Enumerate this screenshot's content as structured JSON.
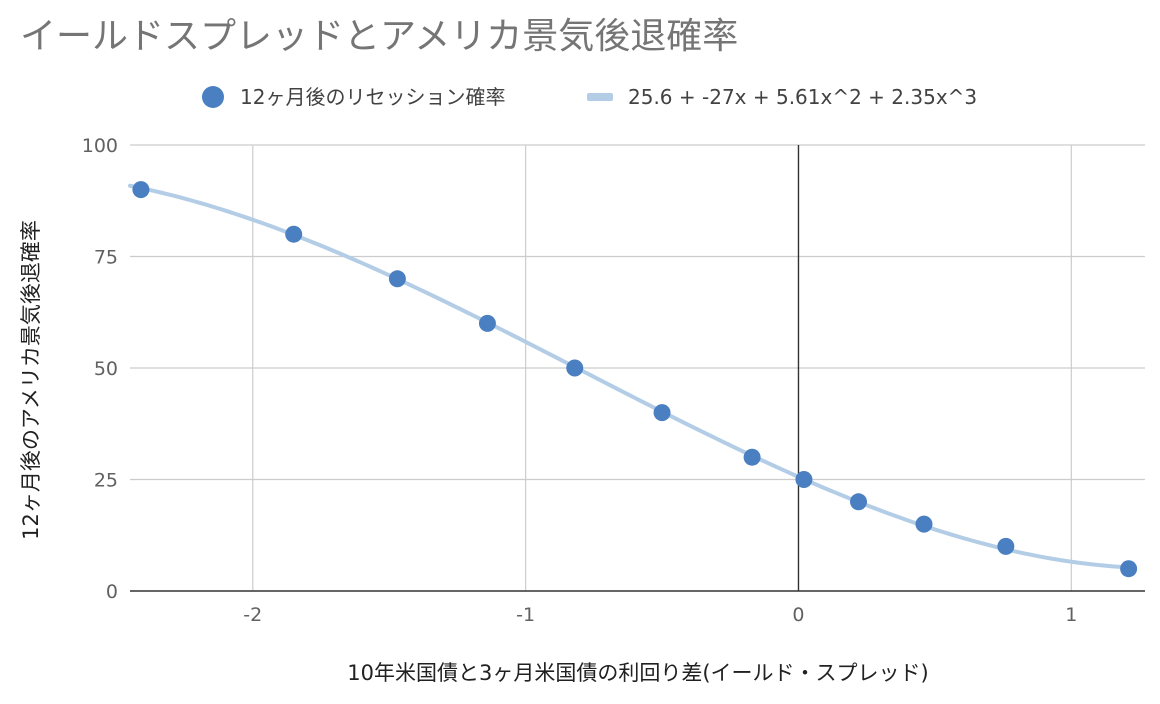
{
  "chart_data": {
    "type": "scatter",
    "title": "イールドスプレッドとアメリカ景気後退確率",
    "xlabel": "10年米国債と3ヶ月米国債の利回り差(イールド・スプレッド)",
    "ylabel": "12ヶ月後のアメリカ景気後退確率",
    "xlim": [
      -2.45,
      1.27
    ],
    "ylim": [
      0,
      100
    ],
    "x_ticks": [
      -2,
      -1,
      0,
      1
    ],
    "x_tick_labels": [
      "-2",
      "-1",
      "0",
      "1"
    ],
    "y_ticks": [
      0,
      25,
      50,
      75,
      100
    ],
    "y_tick_labels": [
      "0",
      "25",
      "50",
      "75",
      "100"
    ],
    "grid": true,
    "legend_position": "top",
    "series": [
      {
        "name": "12ヶ月後のリセッション確率",
        "kind": "points",
        "color": "#4a7fc1",
        "points": [
          {
            "x": -2.41,
            "y": 90
          },
          {
            "x": -1.85,
            "y": 80
          },
          {
            "x": -1.47,
            "y": 70
          },
          {
            "x": -1.14,
            "y": 60
          },
          {
            "x": -0.82,
            "y": 50
          },
          {
            "x": -0.5,
            "y": 40
          },
          {
            "x": -0.17,
            "y": 30
          },
          {
            "x": 0.02,
            "y": 25
          },
          {
            "x": 0.22,
            "y": 20
          },
          {
            "x": 0.46,
            "y": 15
          },
          {
            "x": 0.76,
            "y": 10
          },
          {
            "x": 1.21,
            "y": 5
          }
        ]
      },
      {
        "name": "25.6 + -27x + 5.61x^2 + 2.35x^3",
        "kind": "polynomial-trendline",
        "color": "#b3cde6",
        "coefficients": [
          25.6,
          -27,
          5.61,
          2.35
        ],
        "x_range": [
          -2.45,
          1.21
        ]
      }
    ]
  }
}
